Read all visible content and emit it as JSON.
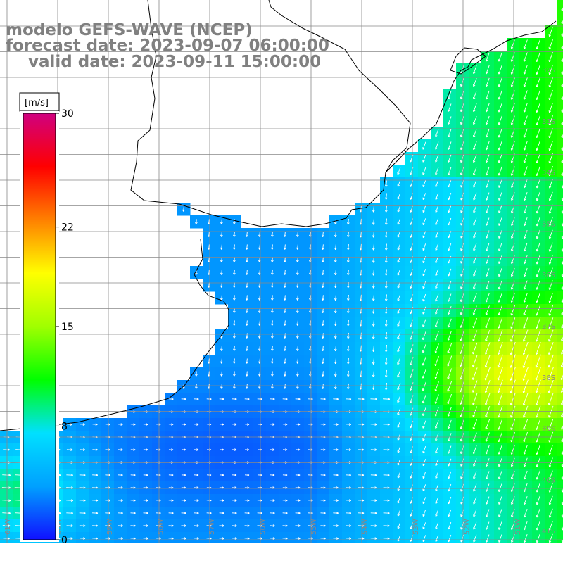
{
  "title": {
    "model": "modelo GEFS-WAVE (NCEP)",
    "forecast": "forecast date: 2023-09-07 06:00:00",
    "valid": "valid date: 2023-09-11 15:00:00"
  },
  "colorbar": {
    "unit": "[m/s]",
    "ticks": [
      {
        "label": "30",
        "value": 30
      },
      {
        "label": "22",
        "value": 22
      },
      {
        "label": "15",
        "value": 15
      },
      {
        "label": "8",
        "value": 8
      },
      {
        "label": "0",
        "value": 0
      }
    ],
    "min": 0,
    "max": 30,
    "colors": [
      "#1010ff",
      "#00a0ff",
      "#00e0ff",
      "#00ff00",
      "#a0ff00",
      "#ffff00",
      "#ff8000",
      "#ff0000",
      "#d00080"
    ]
  },
  "lat_labels": [
    "32S",
    "33S",
    "34S",
    "35S",
    "36S",
    "37S",
    "38S",
    "39S",
    "40S",
    "41S"
  ],
  "lon_labels": [
    "61W",
    "60W",
    "59W",
    "58W",
    "57W",
    "56W",
    "55W",
    "54W",
    "53W",
    "52W",
    "51W"
  ],
  "colors": {
    "land": "#ffffff",
    "coast": "#000000",
    "grid": "#888888",
    "arrow": "#ffffff",
    "title": "#808080"
  }
}
